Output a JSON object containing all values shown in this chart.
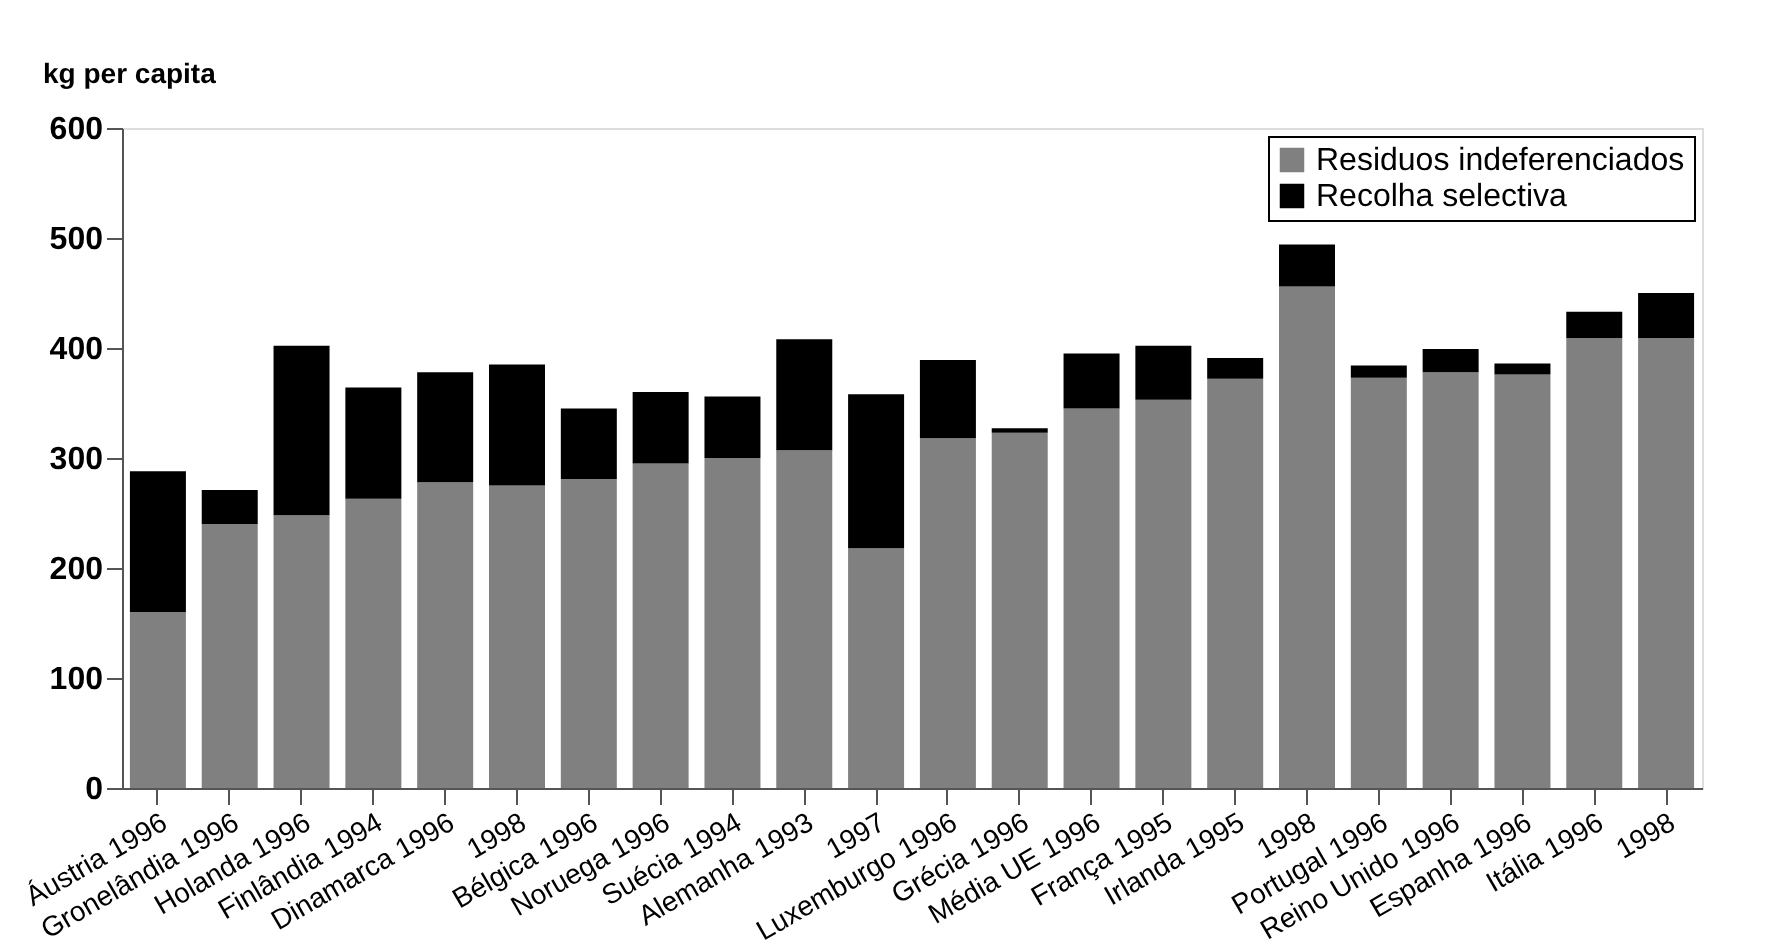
{
  "chart_data": {
    "type": "bar",
    "stacked": true,
    "ylabel": "kg per capita",
    "categories": [
      "Áustria 1996",
      "Gronelândia 1996",
      "Holanda 1996",
      "Finlândia 1994",
      "Dinamarca 1996",
      "1998",
      "Bélgica 1996",
      "Noruega 1996",
      "Suécia 1994",
      "Alemanha 1993",
      "1997",
      "Luxemburgo 1996",
      "Grécia 1996",
      "Média UE 1996",
      "França 1995",
      "Irlanda 1995",
      "1998",
      "Portugal 1996",
      "Reino Unido 1996",
      "Espanha 1996",
      "Itália 1996",
      "1998"
    ],
    "series": [
      {
        "name": "Residuos indeferenciados",
        "color": "#808080",
        "values": [
          160,
          240,
          248,
          263,
          278,
          275,
          281,
          295,
          300,
          307,
          218,
          318,
          323,
          345,
          353,
          372,
          456,
          373,
          378,
          376,
          409,
          409
        ]
      },
      {
        "name": "Recolha selectiva",
        "color": "#000000",
        "values": [
          128,
          31,
          154,
          101,
          100,
          110,
          64,
          65,
          56,
          101,
          140,
          71,
          4,
          50,
          49,
          19,
          38,
          11,
          21,
          10,
          24,
          41
        ]
      }
    ],
    "ylim": [
      0,
      600
    ],
    "yticks": [
      0,
      100,
      200,
      300,
      400,
      500,
      600
    ],
    "grid": false,
    "legend": "top right"
  }
}
